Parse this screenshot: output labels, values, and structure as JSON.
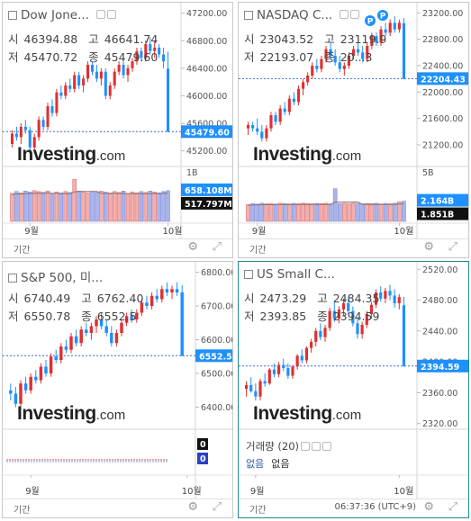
{
  "footer": {
    "period_label": "기간",
    "timestamp": "06:37:36 (UTC+9)"
  },
  "logo": {
    "main": "Investing",
    "suffix": ".com"
  },
  "colors": {
    "up": "#e03030",
    "down": "#1e90ff",
    "last_label_bg": "#1e90ff",
    "border_active": "#1f8a8a"
  },
  "icons": {
    "settings": "gear-icon",
    "expand": "expand-icon",
    "pattern": "pattern-badge-icon"
  },
  "chart_data": [
    {
      "type": "candlestick",
      "title": "Dow Jone...",
      "ohlc": {
        "open_label": "시",
        "open": "46394.88",
        "high_label": "고",
        "high": "46641.74",
        "low_label": "저",
        "low": "45470.72",
        "close_label": "종",
        "close": "45479.60"
      },
      "ylim": [
        45000,
        47300
      ],
      "yticks": [
        "47200.00",
        "46800.00",
        "46400.00",
        "46000.00",
        "45600.00",
        "45200.00"
      ],
      "last_label": "45479.60",
      "last_value": 45479.6,
      "xticks": [
        {
          "label": "9월",
          "index": 4
        },
        {
          "label": "10월",
          "index": 35
        }
      ],
      "candles": [
        [
          45300,
          45500,
          45250,
          45450
        ],
        [
          45450,
          45550,
          45350,
          45400
        ],
        [
          45400,
          45600,
          45300,
          45550
        ],
        [
          45550,
          45650,
          45450,
          45500
        ],
        [
          45500,
          45550,
          45150,
          45250
        ],
        [
          45250,
          45450,
          45200,
          45400
        ],
        [
          45400,
          45700,
          45350,
          45650
        ],
        [
          45650,
          45700,
          45500,
          45550
        ],
        [
          45550,
          45900,
          45500,
          45850
        ],
        [
          45850,
          45950,
          45700,
          45750
        ],
        [
          45750,
          46100,
          45700,
          46050
        ],
        [
          46050,
          46150,
          45950,
          46000
        ],
        [
          46000,
          46200,
          45950,
          46150
        ],
        [
          46150,
          46250,
          46050,
          46100
        ],
        [
          46100,
          46350,
          46050,
          46300
        ],
        [
          46300,
          46350,
          46100,
          46150
        ],
        [
          46150,
          46300,
          46050,
          46250
        ],
        [
          46250,
          46500,
          46200,
          46450
        ],
        [
          46450,
          46500,
          46300,
          46350
        ],
        [
          46350,
          46450,
          46200,
          46250
        ],
        [
          46250,
          46400,
          46150,
          46350
        ],
        [
          46350,
          46400,
          45950,
          46000
        ],
        [
          46000,
          46200,
          45950,
          46150
        ],
        [
          46150,
          46400,
          46100,
          46350
        ],
        [
          46350,
          46500,
          46300,
          46450
        ],
        [
          46450,
          46500,
          46250,
          46300
        ],
        [
          46300,
          46450,
          46200,
          46400
        ],
        [
          46400,
          46550,
          46350,
          46500
        ],
        [
          46500,
          46700,
          46450,
          46650
        ],
        [
          46650,
          46700,
          46500,
          46550
        ],
        [
          46550,
          46800,
          46500,
          46750
        ],
        [
          46750,
          46850,
          46600,
          46650
        ],
        [
          46650,
          46800,
          46550,
          46700
        ],
        [
          46700,
          46750,
          46550,
          46600
        ],
        [
          46600,
          46700,
          46400,
          46500
        ],
        [
          46394.88,
          46641.74,
          45470.72,
          45479.6
        ]
      ],
      "volume": {
        "yticks": [
          "1B"
        ],
        "max": 1100,
        "labels": [
          "658.108M",
          "517.797M"
        ],
        "label_values": [
          658.108,
          517.797
        ],
        "values": [
          600,
          640,
          610,
          650,
          630,
          660,
          640,
          620,
          650,
          600,
          630,
          610,
          640,
          620,
          900,
          650,
          630,
          610,
          640,
          620,
          650,
          630,
          610,
          640,
          620,
          650,
          600,
          630,
          610,
          640,
          620,
          650,
          630,
          610,
          640,
          658
        ]
      }
    },
    {
      "type": "candlestick",
      "title": "NASDAQ C...",
      "ohlc": {
        "open_label": "시",
        "open": "23043.52",
        "high_label": "고",
        "high": "23119.9",
        "low_label": "저",
        "low": "22193.07",
        "close_label": "종",
        "close": "20...3"
      },
      "ylim": [
        20900,
        23300
      ],
      "yticks": [
        "23200.00",
        "22800.00",
        "22400.00",
        "22000.00",
        "21600.00",
        "21200.00"
      ],
      "last_label": "22204.43",
      "last_value": 22204.43,
      "xticks": [
        {
          "label": "9월",
          "index": 2
        },
        {
          "label": "10월",
          "index": 33
        }
      ],
      "badges": [
        "P",
        "P"
      ],
      "candles": [
        [
          21450,
          21550,
          21350,
          21500
        ],
        [
          21500,
          21550,
          21400,
          21450
        ],
        [
          21450,
          21600,
          21350,
          21400
        ],
        [
          21400,
          21500,
          21250,
          21300
        ],
        [
          21300,
          21500,
          21250,
          21450
        ],
        [
          21450,
          21700,
          21400,
          21650
        ],
        [
          21650,
          21700,
          21500,
          21550
        ],
        [
          21550,
          21800,
          21500,
          21750
        ],
        [
          21750,
          21850,
          21650,
          21700
        ],
        [
          21700,
          21950,
          21650,
          21900
        ],
        [
          21900,
          22000,
          21800,
          21850
        ],
        [
          21850,
          22100,
          21800,
          22050
        ],
        [
          22050,
          22200,
          21950,
          22150
        ],
        [
          22150,
          22300,
          22100,
          22250
        ],
        [
          22250,
          22450,
          22200,
          22400
        ],
        [
          22400,
          22500,
          22300,
          22350
        ],
        [
          22350,
          22550,
          22300,
          22500
        ],
        [
          22500,
          22700,
          22450,
          22650
        ],
        [
          22650,
          22750,
          22500,
          22550
        ],
        [
          22550,
          22650,
          22400,
          22450
        ],
        [
          22450,
          22550,
          22300,
          22350
        ],
        [
          22350,
          22450,
          22250,
          22400
        ],
        [
          22400,
          22600,
          22350,
          22550
        ],
        [
          22550,
          22700,
          22500,
          22650
        ],
        [
          22650,
          22750,
          22550,
          22600
        ],
        [
          22600,
          22700,
          22450,
          22500
        ],
        [
          22500,
          22750,
          22450,
          22700
        ],
        [
          22700,
          22900,
          22650,
          22850
        ],
        [
          22850,
          22900,
          22700,
          22750
        ],
        [
          22750,
          23000,
          22700,
          22950
        ],
        [
          22950,
          23050,
          22850,
          22900
        ],
        [
          22900,
          23100,
          22850,
          23050
        ],
        [
          23050,
          23150,
          22900,
          22950
        ],
        [
          22950,
          23100,
          22900,
          23050
        ],
        [
          23043.52,
          23119.9,
          22193.07,
          22204.43
        ]
      ],
      "volume": {
        "yticks": [
          "5B"
        ],
        "max": 5500,
        "labels": [
          "2.164B",
          "1.851B"
        ],
        "label_values": [
          2164,
          1851
        ],
        "values": [
          1800,
          1900,
          1850,
          1950,
          1880,
          1920,
          1860,
          1940,
          1900,
          1870,
          1930,
          1890,
          1950,
          1910,
          1880,
          1920,
          1900,
          1940,
          1870,
          3500,
          1900,
          1930,
          1890,
          1950,
          1910,
          1880,
          1920,
          1900,
          1940,
          1870,
          1930,
          1890,
          1950,
          2100,
          2164
        ]
      }
    },
    {
      "type": "candlestick",
      "title": "S&P 500, 미...",
      "ohlc": {
        "open_label": "시",
        "open": "6740.49",
        "high_label": "고",
        "high": "6762.40",
        "low_label": "저",
        "low": "6550.78",
        "close_label": "종",
        "close": "6552.5"
      },
      "ylim": [
        6340,
        6820
      ],
      "yticks": [
        "6800.00",
        "6700.00",
        "6600.00",
        "6500.00",
        "6400.00"
      ],
      "last_label": "6552.51",
      "last_value": 6552.51,
      "xticks": [
        {
          "label": "9월",
          "index": 4
        },
        {
          "label": "10월",
          "index": 35
        }
      ],
      "candles": [
        [
          6450,
          6470,
          6420,
          6440
        ],
        [
          6440,
          6460,
          6400,
          6410
        ],
        [
          6410,
          6480,
          6400,
          6470
        ],
        [
          6470,
          6490,
          6440,
          6450
        ],
        [
          6450,
          6500,
          6440,
          6490
        ],
        [
          6490,
          6510,
          6470,
          6480
        ],
        [
          6480,
          6530,
          6470,
          6520
        ],
        [
          6520,
          6540,
          6490,
          6500
        ],
        [
          6500,
          6560,
          6490,
          6550
        ],
        [
          6550,
          6570,
          6530,
          6540
        ],
        [
          6540,
          6590,
          6530,
          6580
        ],
        [
          6580,
          6600,
          6560,
          6570
        ],
        [
          6570,
          6620,
          6560,
          6610
        ],
        [
          6610,
          6630,
          6580,
          6590
        ],
        [
          6590,
          6640,
          6580,
          6630
        ],
        [
          6630,
          6650,
          6610,
          6620
        ],
        [
          6620,
          6650,
          6600,
          6640
        ],
        [
          6640,
          6670,
          6620,
          6660
        ],
        [
          6660,
          6680,
          6630,
          6640
        ],
        [
          6640,
          6660,
          6610,
          6620
        ],
        [
          6620,
          6640,
          6580,
          6590
        ],
        [
          6590,
          6630,
          6580,
          6620
        ],
        [
          6620,
          6660,
          6610,
          6650
        ],
        [
          6650,
          6680,
          6640,
          6670
        ],
        [
          6670,
          6690,
          6650,
          6660
        ],
        [
          6660,
          6690,
          6650,
          6680
        ],
        [
          6680,
          6720,
          6670,
          6710
        ],
        [
          6710,
          6730,
          6690,
          6700
        ],
        [
          6700,
          6740,
          6690,
          6730
        ],
        [
          6730,
          6750,
          6710,
          6720
        ],
        [
          6720,
          6760,
          6710,
          6750
        ],
        [
          6750,
          6770,
          6730,
          6740
        ],
        [
          6740,
          6760,
          6720,
          6750
        ],
        [
          6750,
          6770,
          6730,
          6740
        ],
        [
          6740.49,
          6762.4,
          6550.78,
          6552.51
        ]
      ],
      "volume": {
        "yticks": [],
        "max": 1,
        "labels": [
          "0",
          "0"
        ],
        "label_values": [
          0,
          0
        ],
        "values": []
      }
    },
    {
      "type": "candlestick",
      "title": "US Small C...",
      "ohlc": {
        "open_label": "시",
        "open": "2473.29",
        "high_label": "고",
        "high": "2484.35",
        "low_label": "저",
        "low": "2393.85",
        "close_label": "종",
        "close": "2394.59"
      },
      "ylim": [
        2315,
        2525
      ],
      "yticks": [
        "2520.00",
        "2480.00",
        "2440.00",
        "2400.00",
        "2360.00",
        "2320.00"
      ],
      "last_label": "2394.59",
      "last_value": 2394.59,
      "xticks": [
        {
          "label": "9월",
          "index": 2
        },
        {
          "label": "10월",
          "index": 33
        }
      ],
      "candles": [
        [
          2365,
          2375,
          2355,
          2370
        ],
        [
          2370,
          2380,
          2360,
          2362
        ],
        [
          2362,
          2372,
          2350,
          2355
        ],
        [
          2355,
          2378,
          2350,
          2375
        ],
        [
          2375,
          2385,
          2368,
          2372
        ],
        [
          2372,
          2392,
          2370,
          2390
        ],
        [
          2390,
          2398,
          2380,
          2384
        ],
        [
          2384,
          2400,
          2380,
          2396
        ],
        [
          2396,
          2404,
          2388,
          2392
        ],
        [
          2392,
          2398,
          2378,
          2382
        ],
        [
          2382,
          2396,
          2378,
          2394
        ],
        [
          2394,
          2410,
          2390,
          2408
        ],
        [
          2408,
          2416,
          2398,
          2402
        ],
        [
          2402,
          2420,
          2398,
          2418
        ],
        [
          2418,
          2430,
          2412,
          2426
        ],
        [
          2426,
          2444,
          2420,
          2440
        ],
        [
          2440,
          2450,
          2428,
          2432
        ],
        [
          2432,
          2448,
          2426,
          2444
        ],
        [
          2444,
          2470,
          2440,
          2466
        ],
        [
          2466,
          2478,
          2452,
          2456
        ],
        [
          2456,
          2472,
          2450,
          2468
        ],
        [
          2468,
          2482,
          2460,
          2476
        ],
        [
          2476,
          2484,
          2462,
          2466
        ],
        [
          2466,
          2472,
          2446,
          2450
        ],
        [
          2450,
          2458,
          2430,
          2436
        ],
        [
          2436,
          2452,
          2430,
          2448
        ],
        [
          2448,
          2466,
          2444,
          2462
        ],
        [
          2462,
          2478,
          2456,
          2474
        ],
        [
          2474,
          2494,
          2470,
          2490
        ],
        [
          2490,
          2498,
          2478,
          2482
        ],
        [
          2482,
          2496,
          2476,
          2492
        ],
        [
          2492,
          2500,
          2480,
          2486
        ],
        [
          2486,
          2494,
          2470,
          2476
        ],
        [
          2476,
          2488,
          2468,
          2484
        ],
        [
          2473.29,
          2484.35,
          2393.85,
          2394.59
        ]
      ],
      "volume": {
        "yticks": [],
        "max": 1,
        "labels": [],
        "label_values": [],
        "values": [],
        "legend": "거래량 (20)",
        "none_a": "없음",
        "none_b": "없음"
      }
    }
  ]
}
